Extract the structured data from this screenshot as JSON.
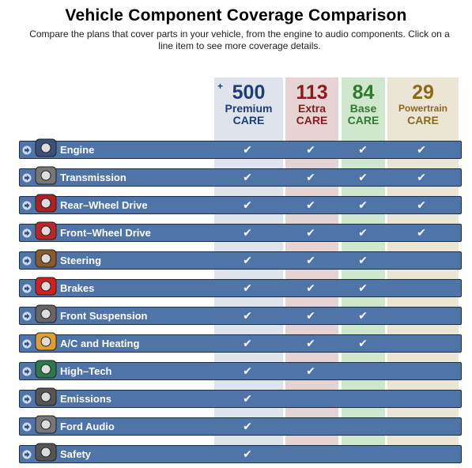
{
  "header": {
    "title": "Vehicle Component Coverage Comparison",
    "subtitle": "Compare the plans that cover parts in your vehicle, from the engine to audio components. Click on a line item to see more coverage details."
  },
  "plans": [
    {
      "plus": "+",
      "number": "500",
      "name": "Premium",
      "care": "CARE",
      "color": "#1d3e7a"
    },
    {
      "number": "113",
      "name": "Extra",
      "care": "CARE",
      "color": "#8b1a1a"
    },
    {
      "number": "84",
      "name": "Base",
      "care": "CARE",
      "color": "#2f7a2f"
    },
    {
      "number": "29",
      "name": "Powertrain",
      "care": "CARE",
      "color": "#8a6a1a"
    }
  ],
  "check_glyph": "✔",
  "components": [
    {
      "label": "Engine",
      "icon": "engine-icon",
      "coverage": [
        true,
        true,
        true,
        true
      ]
    },
    {
      "label": "Transmission",
      "icon": "transmission-icon",
      "coverage": [
        true,
        true,
        true,
        true
      ]
    },
    {
      "label": "Rear–Wheel Drive",
      "icon": "rear-wheel-drive-icon",
      "coverage": [
        true,
        true,
        true,
        true
      ]
    },
    {
      "label": "Front–Wheel Drive",
      "icon": "front-wheel-drive-icon",
      "coverage": [
        true,
        true,
        true,
        true
      ]
    },
    {
      "label": "Steering",
      "icon": "steering-wheel-icon",
      "coverage": [
        true,
        true,
        true,
        false
      ]
    },
    {
      "label": "Brakes",
      "icon": "stop-sign-icon",
      "coverage": [
        true,
        true,
        true,
        false
      ]
    },
    {
      "label": "Front Suspension",
      "icon": "suspension-icon",
      "coverage": [
        true,
        true,
        true,
        false
      ]
    },
    {
      "label": "A/C and Heating",
      "icon": "climate-icon",
      "coverage": [
        true,
        true,
        true,
        false
      ]
    },
    {
      "label": "High–Tech",
      "icon": "circuit-board-icon",
      "coverage": [
        true,
        true,
        false,
        false
      ]
    },
    {
      "label": "Emissions",
      "icon": "exhaust-icon",
      "coverage": [
        true,
        false,
        false,
        false
      ]
    },
    {
      "label": "Ford Audio",
      "icon": "speaker-icon",
      "coverage": [
        true,
        false,
        false,
        false
      ]
    },
    {
      "label": "Safety",
      "icon": "airbag-icon",
      "coverage": [
        true,
        false,
        false,
        false
      ]
    }
  ]
}
